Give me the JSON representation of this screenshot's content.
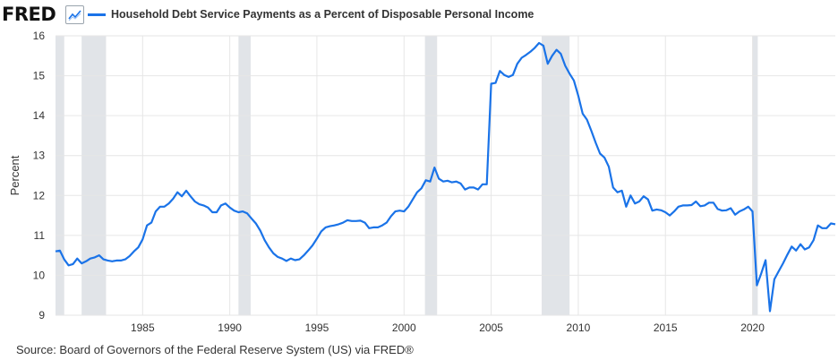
{
  "header": {
    "logo_text": "FRED",
    "logo_icon": "line-chart-icon"
  },
  "source": "Source: Board of Governors of the Federal Reserve System (US) via FRED®",
  "colors": {
    "series": "#1a73e8",
    "recession": "#e1e4e8",
    "grid": "#e6e6e6"
  },
  "chart_data": {
    "type": "line",
    "title": "",
    "xlabel": "",
    "ylabel": "Percent",
    "xlim": [
      1980.0,
      2024.75
    ],
    "ylim": [
      9,
      16
    ],
    "yticks": [
      9,
      10,
      11,
      12,
      13,
      14,
      15,
      16
    ],
    "xticks": [
      1985,
      1990,
      1995,
      2000,
      2005,
      2010,
      2015,
      2020
    ],
    "grid": true,
    "legend_position": "top-left",
    "recessions": [
      [
        1980.0,
        1980.5
      ],
      [
        1981.5,
        1982.9
      ],
      [
        1990.5,
        1991.2
      ],
      [
        2001.2,
        2001.9
      ],
      [
        2007.9,
        2009.5
      ],
      [
        2020.0,
        2020.3
      ]
    ],
    "series": [
      {
        "name": "Household Debt Service Payments as a Percent of Disposable Personal Income",
        "points": [
          [
            1980.0,
            10.6
          ],
          [
            1980.25,
            10.62
          ],
          [
            1980.5,
            10.4
          ],
          [
            1980.75,
            10.25
          ],
          [
            1981.0,
            10.28
          ],
          [
            1981.25,
            10.42
          ],
          [
            1981.5,
            10.3
          ],
          [
            1981.75,
            10.35
          ],
          [
            1982.0,
            10.42
          ],
          [
            1982.25,
            10.45
          ],
          [
            1982.5,
            10.5
          ],
          [
            1982.75,
            10.4
          ],
          [
            1983.0,
            10.37
          ],
          [
            1983.25,
            10.35
          ],
          [
            1983.5,
            10.37
          ],
          [
            1983.75,
            10.37
          ],
          [
            1984.0,
            10.4
          ],
          [
            1984.25,
            10.48
          ],
          [
            1984.5,
            10.6
          ],
          [
            1984.75,
            10.7
          ],
          [
            1985.0,
            10.9
          ],
          [
            1985.25,
            11.25
          ],
          [
            1985.5,
            11.32
          ],
          [
            1985.75,
            11.6
          ],
          [
            1986.0,
            11.72
          ],
          [
            1986.25,
            11.72
          ],
          [
            1986.5,
            11.8
          ],
          [
            1986.75,
            11.92
          ],
          [
            1987.0,
            12.08
          ],
          [
            1987.25,
            11.98
          ],
          [
            1987.5,
            12.12
          ],
          [
            1987.75,
            11.98
          ],
          [
            1988.0,
            11.85
          ],
          [
            1988.25,
            11.78
          ],
          [
            1988.5,
            11.75
          ],
          [
            1988.75,
            11.7
          ],
          [
            1989.0,
            11.58
          ],
          [
            1989.25,
            11.58
          ],
          [
            1989.5,
            11.75
          ],
          [
            1989.75,
            11.8
          ],
          [
            1990.0,
            11.7
          ],
          [
            1990.25,
            11.62
          ],
          [
            1990.5,
            11.58
          ],
          [
            1990.75,
            11.6
          ],
          [
            1991.0,
            11.55
          ],
          [
            1991.25,
            11.42
          ],
          [
            1991.5,
            11.3
          ],
          [
            1991.75,
            11.12
          ],
          [
            1992.0,
            10.88
          ],
          [
            1992.25,
            10.7
          ],
          [
            1992.5,
            10.55
          ],
          [
            1992.75,
            10.46
          ],
          [
            1993.0,
            10.42
          ],
          [
            1993.25,
            10.36
          ],
          [
            1993.5,
            10.42
          ],
          [
            1993.75,
            10.38
          ],
          [
            1994.0,
            10.4
          ],
          [
            1994.25,
            10.5
          ],
          [
            1994.5,
            10.62
          ],
          [
            1994.75,
            10.75
          ],
          [
            1995.0,
            10.92
          ],
          [
            1995.25,
            11.1
          ],
          [
            1995.5,
            11.2
          ],
          [
            1995.75,
            11.23
          ],
          [
            1996.0,
            11.25
          ],
          [
            1996.25,
            11.28
          ],
          [
            1996.5,
            11.32
          ],
          [
            1996.75,
            11.38
          ],
          [
            1997.0,
            11.36
          ],
          [
            1997.25,
            11.36
          ],
          [
            1997.5,
            11.37
          ],
          [
            1997.75,
            11.32
          ],
          [
            1998.0,
            11.18
          ],
          [
            1998.25,
            11.2
          ],
          [
            1998.5,
            11.2
          ],
          [
            1998.75,
            11.25
          ],
          [
            1999.0,
            11.32
          ],
          [
            1999.25,
            11.48
          ],
          [
            1999.5,
            11.6
          ],
          [
            1999.75,
            11.62
          ],
          [
            2000.0,
            11.6
          ],
          [
            2000.25,
            11.72
          ],
          [
            2000.5,
            11.9
          ],
          [
            2000.75,
            12.08
          ],
          [
            2001.0,
            12.18
          ],
          [
            2001.25,
            12.38
          ],
          [
            2001.5,
            12.35
          ],
          [
            2001.75,
            12.7
          ],
          [
            2002.0,
            12.42
          ],
          [
            2002.25,
            12.35
          ],
          [
            2002.5,
            12.37
          ],
          [
            2002.75,
            12.33
          ],
          [
            2003.0,
            12.35
          ],
          [
            2003.25,
            12.3
          ],
          [
            2003.5,
            12.15
          ],
          [
            2003.75,
            12.2
          ],
          [
            2004.0,
            12.2
          ],
          [
            2004.25,
            12.15
          ],
          [
            2004.5,
            12.28
          ],
          [
            2004.75,
            12.28
          ],
          [
            2005.0,
            14.8
          ],
          [
            2005.25,
            14.82
          ],
          [
            2005.5,
            15.12
          ],
          [
            2005.75,
            15.02
          ],
          [
            2006.0,
            14.97
          ],
          [
            2006.25,
            15.02
          ],
          [
            2006.5,
            15.3
          ],
          [
            2006.75,
            15.45
          ],
          [
            2007.0,
            15.52
          ],
          [
            2007.25,
            15.6
          ],
          [
            2007.5,
            15.7
          ],
          [
            2007.75,
            15.82
          ],
          [
            2008.0,
            15.75
          ],
          [
            2008.25,
            15.3
          ],
          [
            2008.5,
            15.5
          ],
          [
            2008.75,
            15.65
          ],
          [
            2009.0,
            15.55
          ],
          [
            2009.25,
            15.25
          ],
          [
            2009.5,
            15.05
          ],
          [
            2009.75,
            14.88
          ],
          [
            2010.0,
            14.5
          ],
          [
            2010.25,
            14.05
          ],
          [
            2010.5,
            13.9
          ],
          [
            2010.75,
            13.62
          ],
          [
            2011.0,
            13.32
          ],
          [
            2011.25,
            13.05
          ],
          [
            2011.5,
            12.95
          ],
          [
            2011.75,
            12.72
          ],
          [
            2012.0,
            12.2
          ],
          [
            2012.25,
            12.08
          ],
          [
            2012.5,
            12.12
          ],
          [
            2012.75,
            11.72
          ],
          [
            2013.0,
            12.0
          ],
          [
            2013.25,
            11.8
          ],
          [
            2013.5,
            11.85
          ],
          [
            2013.75,
            11.98
          ],
          [
            2014.0,
            11.9
          ],
          [
            2014.25,
            11.62
          ],
          [
            2014.5,
            11.65
          ],
          [
            2014.75,
            11.63
          ],
          [
            2015.0,
            11.58
          ],
          [
            2015.25,
            11.5
          ],
          [
            2015.5,
            11.6
          ],
          [
            2015.75,
            11.72
          ],
          [
            2016.0,
            11.75
          ],
          [
            2016.25,
            11.75
          ],
          [
            2016.5,
            11.76
          ],
          [
            2016.75,
            11.85
          ],
          [
            2017.0,
            11.73
          ],
          [
            2017.25,
            11.75
          ],
          [
            2017.5,
            11.82
          ],
          [
            2017.75,
            11.82
          ],
          [
            2018.0,
            11.66
          ],
          [
            2018.25,
            11.62
          ],
          [
            2018.5,
            11.63
          ],
          [
            2018.75,
            11.68
          ],
          [
            2019.0,
            11.52
          ],
          [
            2019.25,
            11.6
          ],
          [
            2019.5,
            11.65
          ],
          [
            2019.75,
            11.72
          ],
          [
            2020.0,
            11.6
          ],
          [
            2020.25,
            9.75
          ],
          [
            2020.5,
            10.05
          ],
          [
            2020.75,
            10.38
          ],
          [
            2021.0,
            9.1
          ],
          [
            2021.25,
            9.9
          ],
          [
            2021.5,
            10.1
          ],
          [
            2021.75,
            10.3
          ],
          [
            2022.0,
            10.52
          ],
          [
            2022.25,
            10.72
          ],
          [
            2022.5,
            10.62
          ],
          [
            2022.75,
            10.78
          ],
          [
            2023.0,
            10.65
          ],
          [
            2023.25,
            10.7
          ],
          [
            2023.5,
            10.88
          ],
          [
            2023.75,
            11.25
          ],
          [
            2024.0,
            11.18
          ],
          [
            2024.25,
            11.18
          ],
          [
            2024.5,
            11.3
          ],
          [
            2024.75,
            11.28
          ]
        ]
      }
    ]
  }
}
